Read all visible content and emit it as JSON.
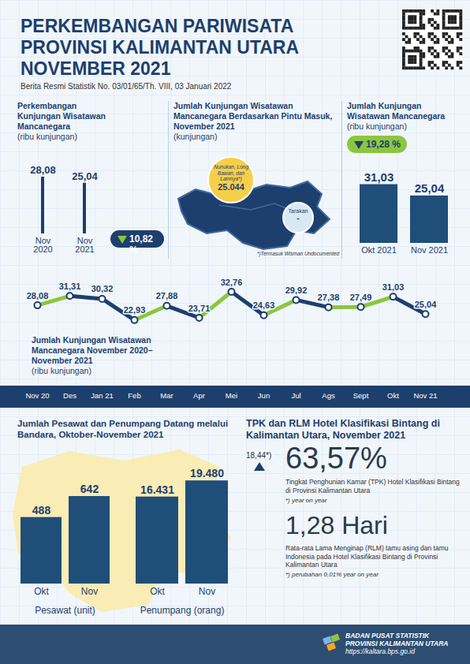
{
  "header": {
    "title_lines": [
      "PERKEMBANGAN PARIWISATA",
      "PROVINSI KALIMANTAN UTARA",
      "NOVEMBER 2021"
    ],
    "subtitle": "Berita Resmi Statistik No. 03/01/65/Th. VIII, 03 Januari 2022"
  },
  "chart_data": [
    {
      "type": "bar",
      "title": "Perkembangan Kunjungan Wisatawan Mancanegara",
      "subtitle": "(ribu kunjungan)",
      "categories": [
        "Nov 2020",
        "Nov 2021"
      ],
      "values": [
        28.08,
        25.04
      ],
      "value_labels": [
        "28,08",
        "25,04"
      ],
      "color": "#1d3f6e",
      "ylim": [
        0,
        32
      ],
      "data_labels": true,
      "tick_labels": "x",
      "annotations": [
        "10,82 %"
      ]
    },
    {
      "type": "bar",
      "title": "Jumlah Kunjungan Wisatawan Mancanegara",
      "subtitle": "(ribu kunjungan)",
      "categories": [
        "Okt 2021",
        "Nov 2021"
      ],
      "values": [
        31.03,
        25.04
      ],
      "value_labels": [
        "31,03",
        "25,04"
      ],
      "color": "#1f4e79",
      "ylim": [
        0,
        35
      ],
      "data_labels": true,
      "tick_labels": "x",
      "annotations": [
        "19,28 %"
      ]
    },
    {
      "type": "line",
      "title": "Jumlah Kunjungan Wisatawan Mancanegara November 2020–November 2021",
      "subtitle": "(ribu kunjungan)",
      "categories": [
        "Nov 20",
        "Des",
        "Jan 21",
        "Feb",
        "Mar",
        "Apr",
        "Mei",
        "Jun",
        "Jul",
        "Ags",
        "Sept",
        "Okt",
        "Nov 21"
      ],
      "values": [
        28.08,
        31.31,
        30.32,
        22.93,
        27.88,
        23.71,
        32.76,
        24.63,
        29.92,
        27.38,
        27.49,
        31.03,
        25.04
      ],
      "value_labels": [
        "28,08",
        "31,31",
        "30,32",
        "22,93",
        "27,88",
        "23,71",
        "32,76",
        "24,63",
        "29,92",
        "27,38",
        "27,49",
        "31,03",
        "25,04"
      ],
      "colors": [
        "#8cc63f",
        "#1d3f6e",
        "#1d3f6e",
        "#8cc63f",
        "#1d3f6e",
        "#8cc63f",
        "#1d3f6e",
        "#8cc63f",
        "#1d3f6e",
        "#8cc63f",
        "#8cc63f",
        "#1d3f6e"
      ],
      "marker": "circle",
      "ylim": [
        0,
        34
      ],
      "data_labels": true,
      "tick_labels": "x"
    },
    {
      "type": "bar",
      "title": "Jumlah Pesawat dan Penumpang Datang melalui Bandara, Oktober-November 2021",
      "xlabel": "Pesawat (unit)",
      "categories": [
        "Okt",
        "Nov"
      ],
      "values": [
        488,
        642
      ],
      "color": "#1f4e79",
      "ylim": [
        0,
        700
      ],
      "data_labels": true,
      "tick_labels": "x"
    },
    {
      "type": "bar",
      "xlabel": "Penumpang (orang)",
      "categories": [
        "Okt",
        "Nov"
      ],
      "values": [
        16431,
        19480
      ],
      "value_labels": [
        "16.431",
        "19.480"
      ],
      "color": "#1f4e79",
      "ylim": [
        0,
        21000
      ],
      "data_labels": true,
      "tick_labels": "x"
    }
  ],
  "map_panel": {
    "title": "Jumlah Kunjungan Wisatawan Mancanegara Berdasarkan Pintu Masuk, November 2021",
    "subtitle": "(kunjungan)",
    "entries": [
      {
        "name": "Nunukan, Long Bawan, dan Lainnya*)",
        "value": "25.044"
      },
      {
        "name": "Tarakan",
        "value": "-"
      }
    ],
    "footnote": "*)Termasuk Wisman Undocumented"
  },
  "hotel_panel": {
    "title": "TPK dan RLM Hotel Klasifikasi Bintang di Kalimantan Utara, November 2021",
    "tpk": {
      "change": "18,44*)",
      "value": "63,57%",
      "description": "Tingkat Penghunian Kamar (TPK) Hotel Klasifikasi Bintang di Provinsi Kalimantan Utara",
      "note": "*) year on year"
    },
    "rlm": {
      "value": "1,28 Hari",
      "description": "Rata-rata Lama Menginap (RLM) tamu asing dan tamu Indonesia pada Hotel Klasifikasi Bintang di Provinsi Kalimantan Utara",
      "note": "*) perubahan 0,01% year on year"
    }
  },
  "footer": {
    "org_lines": [
      "BADAN PUSAT STATISTIK",
      "PROVINSI KALIMANTAN UTARA"
    ],
    "url": "https://kaltara.bps.go.id"
  }
}
